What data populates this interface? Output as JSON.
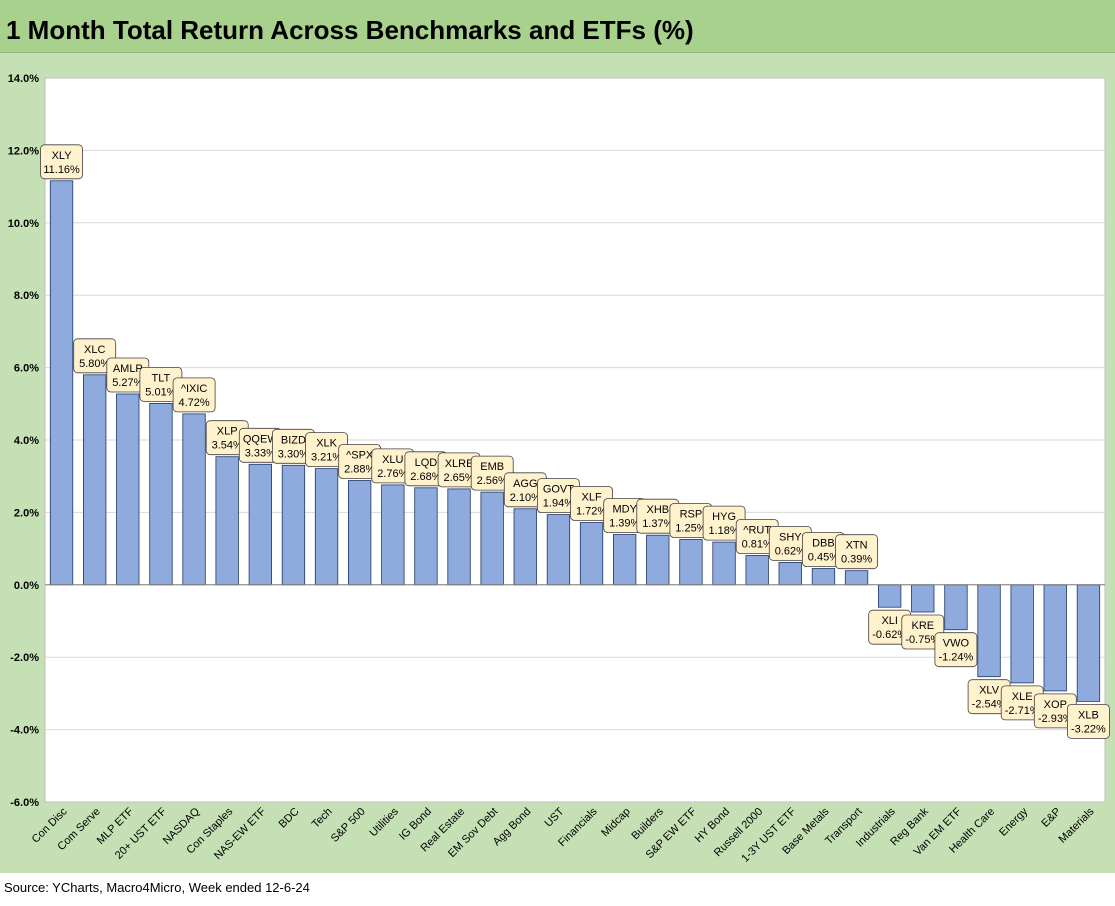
{
  "title": "1 Month Total Return Across Benchmarks and ETFs (%)",
  "source": "Source: YCharts, Macro4Micro, Week ended 12-6-24",
  "colors": {
    "bar": "#8faadc",
    "bar_stroke": "#1f3864",
    "label_bg": "#fff2cc",
    "title_bg": "#a9d18e",
    "frame_bg": "#c5e0b4"
  },
  "chart_data": {
    "type": "bar",
    "title": "1 Month Total Return Across Benchmarks and ETFs (%)",
    "xlabel": "",
    "ylabel": "",
    "ylim": [
      -6,
      14
    ],
    "ytick_step": 2,
    "ytick_labels": [
      "14.0%",
      "12.0%",
      "10.0%",
      "8.0%",
      "6.0%",
      "4.0%",
      "2.0%",
      "0.0%",
      "-2.0%",
      "-4.0%",
      "-6.0%"
    ],
    "grid": true,
    "legend": "none",
    "categories": [
      "Con Disc",
      "Com Serve",
      "MLP ETF",
      "20+ UST ETF",
      "NASDAQ",
      "Con Staples",
      "NAS-EW ETF",
      "BDC",
      "Tech",
      "S&P 500",
      "Utilities",
      "IG Bond",
      "Real Estate",
      "EM Sov Debt",
      "Agg Bond",
      "UST",
      "Financials",
      "Midcap",
      "Builders",
      "S&P EW ETF",
      "HY Bond",
      "Russell 2000",
      "1-3Y UST ETF",
      "Base Metals",
      "Transport",
      "Industrials",
      "Reg Bank",
      "Van EM ETF",
      "Health Care",
      "Energy",
      "E&P",
      "Materials"
    ],
    "tickers": [
      "XLY",
      "XLC",
      "AMLP",
      "TLT",
      "^IXIC",
      "XLP",
      "QQEW",
      "BIZD",
      "XLK",
      "^SPX",
      "XLU",
      "LQD",
      "XLRE",
      "EMB",
      "AGG",
      "GOVT",
      "XLF",
      "MDY",
      "XHB",
      "RSP",
      "HYG",
      "^RUT",
      "SHY",
      "DBB",
      "XTN",
      "XLI",
      "KRE",
      "VWO",
      "XLV",
      "XLE",
      "XOP",
      "XLB"
    ],
    "values": [
      11.16,
      5.8,
      5.27,
      5.01,
      4.72,
      3.54,
      3.33,
      3.3,
      3.21,
      2.88,
      2.76,
      2.68,
      2.65,
      2.56,
      2.1,
      1.94,
      1.72,
      1.39,
      1.37,
      1.25,
      1.18,
      0.81,
      0.62,
      0.45,
      0.39,
      -0.62,
      -0.75,
      -1.24,
      -2.54,
      -2.71,
      -2.93,
      -3.22
    ],
    "value_labels": [
      "11.16%",
      "5.80%",
      "5.27%",
      "5.01%",
      "4.72%",
      "3.54%",
      "3.33%",
      "3.30%",
      "3.21%",
      "2.88%",
      "2.76%",
      "2.68%",
      "2.65%",
      "2.56%",
      "2.10%",
      "1.94%",
      "1.72%",
      "1.39%",
      "1.37%",
      "1.25%",
      "1.18%",
      "0.81%",
      "0.62%",
      "0.45%",
      "0.39%",
      "-0.62%",
      "-0.75%",
      "-1.24%",
      "-2.54%",
      "-2.71%",
      "-2.93%",
      "-3.22%"
    ]
  }
}
